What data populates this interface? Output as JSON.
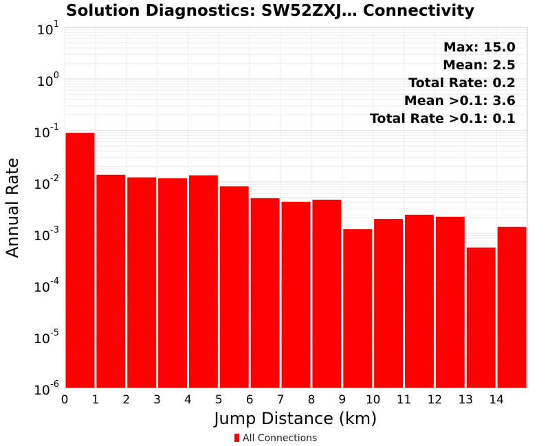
{
  "chart_data": {
    "type": "bar",
    "title": "Solution Diagnostics: SW52ZXJ… Connectivity",
    "xlabel": "Jump Distance (km)",
    "ylabel": "Annual Rate",
    "y_scale": "log",
    "ylim": [
      1e-06,
      10
    ],
    "y_ticks": [
      {
        "base": "10",
        "exp": "1",
        "value": 10
      },
      {
        "base": "10",
        "exp": "0",
        "value": 1
      },
      {
        "base": "10",
        "exp": "-1",
        "value": 0.1
      },
      {
        "base": "10",
        "exp": "-2",
        "value": 0.01
      },
      {
        "base": "10",
        "exp": "-3",
        "value": 0.001
      },
      {
        "base": "10",
        "exp": "-4",
        "value": 0.0001
      },
      {
        "base": "10",
        "exp": "-5",
        "value": 1e-05
      },
      {
        "base": "10",
        "exp": "-6",
        "value": 1e-06
      }
    ],
    "xlim": [
      0,
      15
    ],
    "x_ticks": [
      "0",
      "1",
      "2",
      "3",
      "4",
      "5",
      "6",
      "7",
      "8",
      "9",
      "10",
      "11",
      "12",
      "13",
      "14"
    ],
    "grid": true,
    "bar_color": "#ff0000",
    "legend_position": "bottom-center",
    "series": [
      {
        "name": "All Connections",
        "bins": [
          {
            "x0": 0,
            "x1": 1,
            "value": 0.089
          },
          {
            "x0": 1,
            "x1": 2,
            "value": 0.0137
          },
          {
            "x0": 2,
            "x1": 3,
            "value": 0.0122
          },
          {
            "x0": 3,
            "x1": 4,
            "value": 0.0118
          },
          {
            "x0": 4,
            "x1": 5,
            "value": 0.0134
          },
          {
            "x0": 5,
            "x1": 6,
            "value": 0.0082
          },
          {
            "x0": 6,
            "x1": 7,
            "value": 0.0048
          },
          {
            "x0": 7,
            "x1": 8,
            "value": 0.0041
          },
          {
            "x0": 8,
            "x1": 9,
            "value": 0.0045
          },
          {
            "x0": 9,
            "x1": 10,
            "value": 0.0012
          },
          {
            "x0": 10,
            "x1": 11,
            "value": 0.0019
          },
          {
            "x0": 11,
            "x1": 12,
            "value": 0.0023
          },
          {
            "x0": 12,
            "x1": 13,
            "value": 0.0021
          },
          {
            "x0": 13,
            "x1": 14,
            "value": 0.00053
          },
          {
            "x0": 14,
            "x1": 15,
            "value": 0.00133
          }
        ]
      }
    ],
    "annotations": [
      "Max: 15.0",
      "Mean: 2.5",
      "Total Rate: 0.2",
      "Mean >0.1: 3.6",
      "Total Rate >0.1: 0.1"
    ],
    "annotation_position": "top-right"
  }
}
